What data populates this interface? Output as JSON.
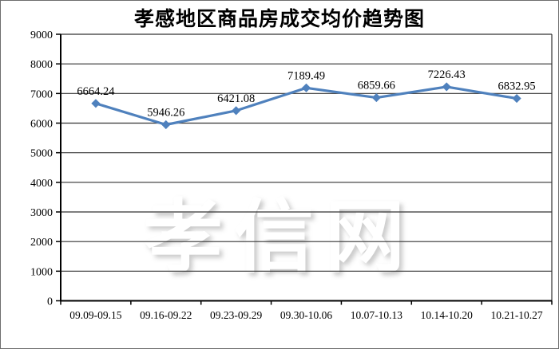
{
  "title": "孝感地区商品房成交均价趋势图",
  "watermark": "孝信网",
  "colors": {
    "line": "#4f81bd",
    "axis": "#000000",
    "grid": "#333333",
    "text": "#000000",
    "background": "#ffffff",
    "border": "#6e6e6e"
  },
  "chart_data": {
    "type": "line",
    "title": "孝感地区商品房成交均价趋势图",
    "categories": [
      "09.09-09.15",
      "09.16-09.22",
      "09.23-09.29",
      "09.30-10.06",
      "10.07-10.13",
      "10.14-10.20",
      "10.21-10.27"
    ],
    "values": [
      6664.24,
      5946.26,
      6421.08,
      7189.49,
      6859.66,
      7226.43,
      6832.95
    ],
    "data_labels": [
      "6664.24",
      "5946.26",
      "6421.08",
      "7189.49",
      "6859.66",
      "7226.43",
      "6832.95"
    ],
    "xlabel": "",
    "ylabel": "",
    "ylim": [
      0,
      9000
    ],
    "ytick_step": 1000,
    "yticks": [
      "0",
      "1000",
      "2000",
      "3000",
      "4000",
      "5000",
      "6000",
      "7000",
      "8000",
      "9000"
    ],
    "grid": true,
    "legend": "none",
    "line_color": "#4f81bd",
    "marker": "diamond",
    "value_decimals": 2
  }
}
